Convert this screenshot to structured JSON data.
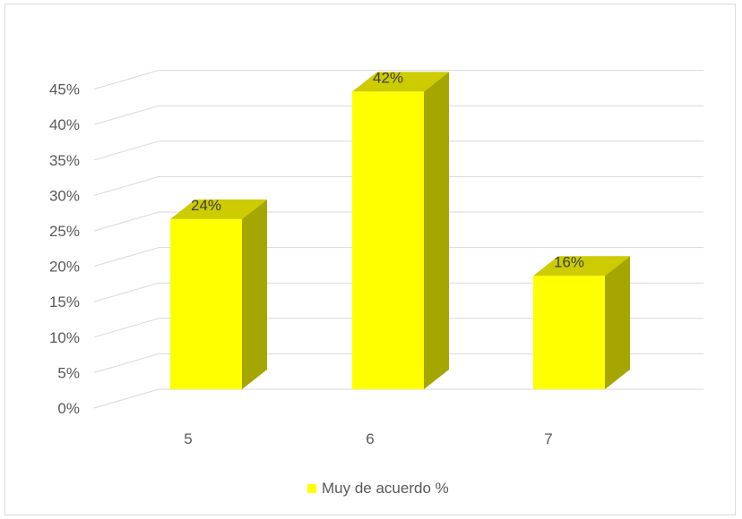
{
  "chart_data": {
    "type": "bar",
    "style": "3d-column",
    "categories": [
      "5",
      "6",
      "7"
    ],
    "series": [
      {
        "name": "Muy de acuerdo  %",
        "values": [
          24,
          42,
          16
        ]
      }
    ],
    "data_labels": [
      "24%",
      "42%",
      "16%"
    ],
    "ylim": [
      0,
      45
    ],
    "yticks": [
      0,
      5,
      10,
      15,
      20,
      25,
      30,
      35,
      40,
      45
    ],
    "ytick_labels": [
      "0%",
      "5%",
      "10%",
      "15%",
      "20%",
      "25%",
      "30%",
      "35%",
      "40%",
      "45%"
    ],
    "grid": true,
    "legend": "bottom",
    "title": "",
    "xlabel": "",
    "ylabel": "",
    "colors": {
      "bar_front": "#ffff00",
      "bar_side": "#a6a600",
      "bar_top": "#cccc00",
      "grid": "#d9d9d9"
    }
  }
}
